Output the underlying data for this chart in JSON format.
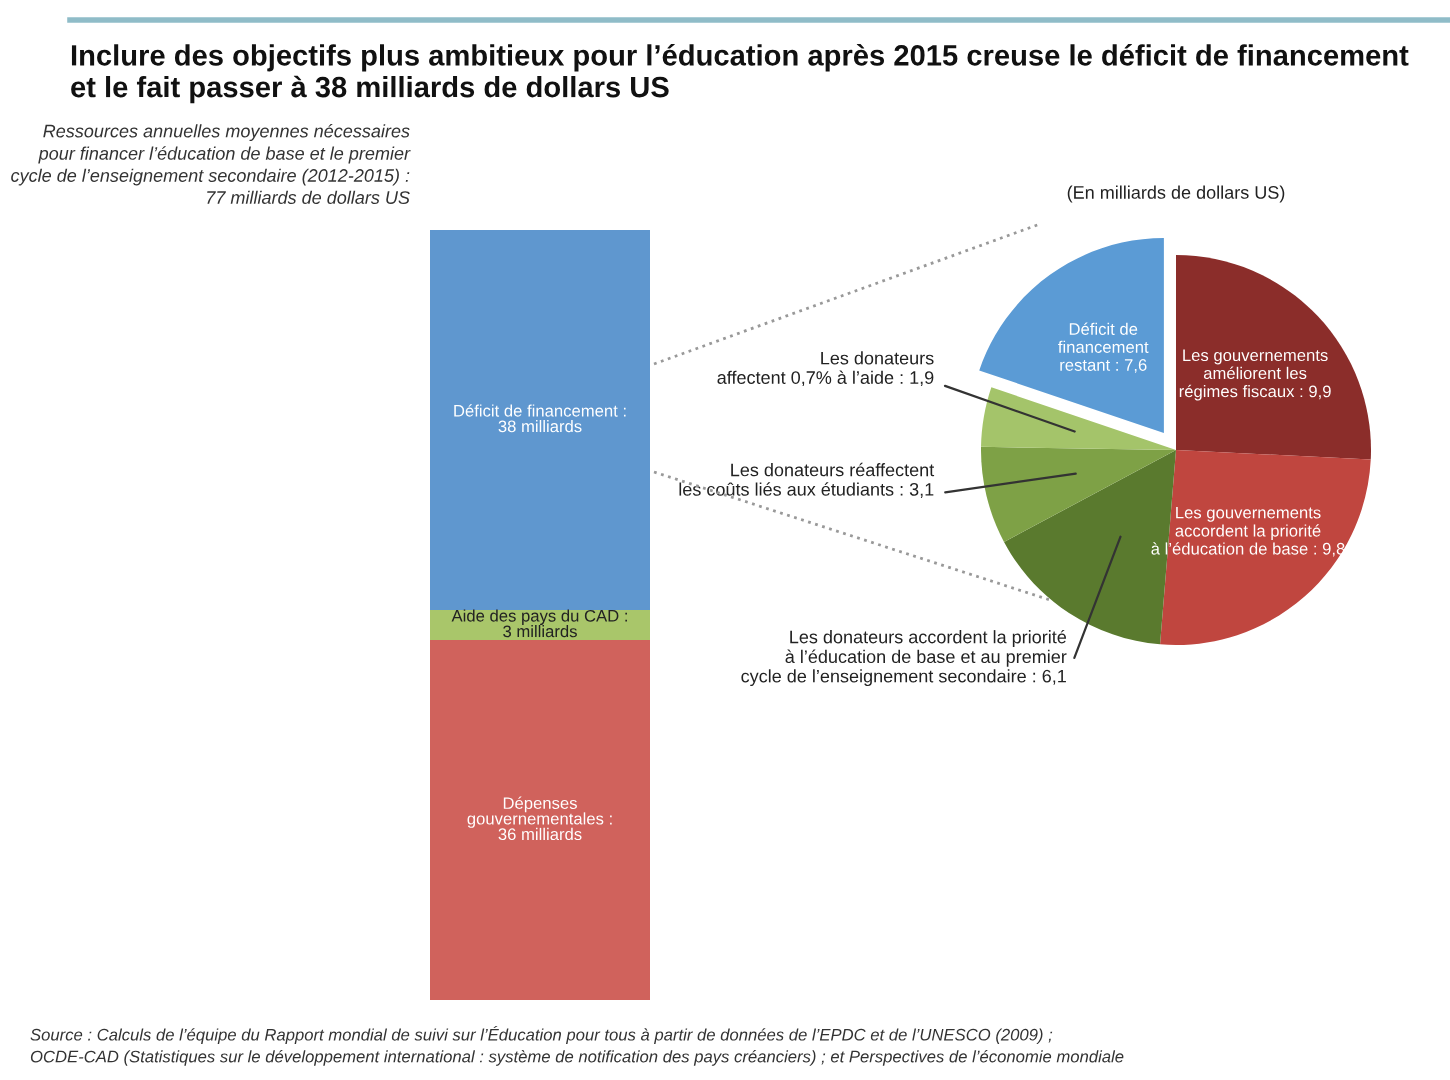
{
  "chart_data": [
    {
      "type": "bar",
      "stacked": true,
      "title": "Inclure des objectifs plus ambitieux pour l’éducation après 2015 creuse le déficit de financement\net le fait passer à 38 milliards de dollars US",
      "categories": [
        null
      ],
      "series": [
        {
          "color": "#d0625c",
          "values": [
            36
          ],
          "value_labels": [
            "Dépenses\ngouvernementales :\n36 milliards"
          ]
        },
        {
          "color": "#a9c66a",
          "values": [
            3
          ],
          "value_labels": [
            "Aide des pays du CAD :\n3 milliards"
          ]
        },
        {
          "color": "#5f97cf",
          "values": [
            38
          ],
          "value_labels": [
            "Déficit de financement :\n38 milliards"
          ]
        }
      ],
      "annotations": [
        "Ressources annuelles moyennes nécessaires\npour financer l’éducation de base et le premier\ncycle de l’enseignement secondaire (2012-2015) :\n77 milliards de dollars US",
        "Source : Calculs de l’équipe du Rapport mondial de suivi sur l’Éducation pour tous à partir de données de l’EPDC et de l’UNESCO (2009) ;\nOCDE-CAD (Statistiques sur le développement international : système de notification des pays créanciers) ; et Perspectives de l’économie mondiale"
      ]
    },
    {
      "type": "pie",
      "title": "(En milliards de dollars US)",
      "categories": [
        "Les gouvernements\naméliorent les\nrégimes fiscaux",
        "Les gouvernements\naccordent la priorité\nà l’éducation de base",
        "Les donateurs accordent la priorité\nà l’éducation de base et au premier\ncycle de l’enseignement secondaire",
        "Les donateurs réaffectent\nles coûts liés aux étudiants",
        "Les donateurs\naffectent 0,7% à l’aide",
        "Déficit de\nfinancement\nrestant"
      ],
      "values": [
        9.9,
        9.8,
        6.1,
        3.1,
        1.9,
        7.6
      ],
      "value_labels": [
        "9,9",
        "9,8",
        "6,1",
        "3,1",
        "1,9",
        "7,6"
      ],
      "colors": [
        "#8b2d2a",
        "#c0463f",
        "#5a7a2e",
        "#7ea146",
        "#a4c46a",
        "#5b9bd5"
      ]
    }
  ]
}
